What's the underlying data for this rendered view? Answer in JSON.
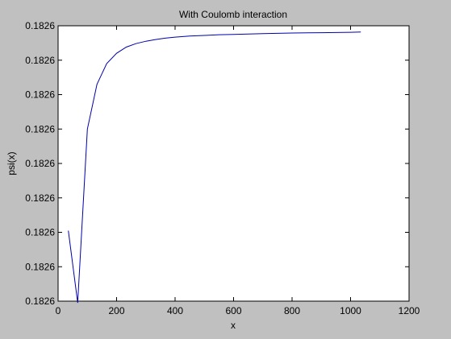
{
  "chart_data": {
    "type": "line",
    "title": "With Coulomb interaction",
    "xlabel": "x",
    "ylabel": "psi(x)",
    "xlim": [
      0,
      1200
    ],
    "ylim": [
      0,
      8
    ],
    "x_ticks": [
      0,
      200,
      400,
      600,
      800,
      1000,
      1200
    ],
    "x_tick_labels": [
      "0",
      "200",
      "400",
      "600",
      "800",
      "1000",
      "1200"
    ],
    "y_ticks": [
      0,
      1,
      2,
      3,
      4,
      5,
      6,
      7,
      8
    ],
    "y_tick_labels": [
      "0.1826",
      "0.1826",
      "0.1826",
      "0.1826",
      "0.1826",
      "0.1826",
      "0.1826",
      "0.1826",
      "0.1826"
    ],
    "y_values_note_free": true,
    "grid": false,
    "series": [
      {
        "color": "#0000aa",
        "x": [
          35,
          67,
          100,
          133,
          166,
          200,
          233,
          266,
          300,
          333,
          366,
          400,
          450,
          500,
          550,
          600,
          700,
          800,
          900,
          1000,
          1035
        ],
        "y": [
          2.05,
          -0.05,
          5.0,
          6.3,
          6.9,
          7.2,
          7.38,
          7.48,
          7.55,
          7.6,
          7.64,
          7.67,
          7.7,
          7.72,
          7.74,
          7.75,
          7.77,
          7.79,
          7.8,
          7.81,
          7.82
        ]
      }
    ]
  }
}
